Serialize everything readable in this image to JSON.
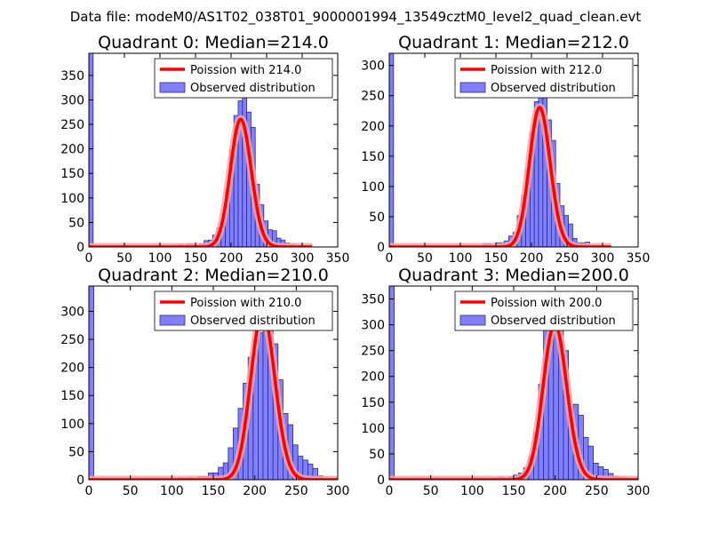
{
  "suptitle": "Data file: modeM0/AS1T02_038T01_9000001994_13549cztM0_level2_quad_clean.evt",
  "colors": {
    "bar_fill": "#8080ff",
    "bar_edge": "#2a2a8c",
    "fit_line": "#ff0000",
    "fit_shadow": "#f4a6a6",
    "axes": "#000000",
    "legend_border": "#000000"
  },
  "chart_data": [
    {
      "type": "bar",
      "title": "Quadrant 0: Median=214.0",
      "bin_width": 6,
      "xlim": [
        0,
        350
      ],
      "ylim": [
        0,
        395
      ],
      "xticks": [
        0,
        50,
        100,
        150,
        200,
        250,
        300,
        350
      ],
      "yticks": [
        0,
        50,
        100,
        150,
        200,
        250,
        300,
        350
      ],
      "legend": {
        "position": "upper-right",
        "line_label": "Poission with 214.0",
        "bar_label": "Observed distribution"
      },
      "poisson_mean": 214.0,
      "bins": [
        [
          0,
          395
        ],
        [
          126,
          5
        ],
        [
          138,
          6
        ],
        [
          144,
          5
        ],
        [
          156,
          7
        ],
        [
          162,
          13
        ],
        [
          168,
          14
        ],
        [
          174,
          24
        ],
        [
          180,
          39
        ],
        [
          186,
          52
        ],
        [
          192,
          117
        ],
        [
          198,
          198
        ],
        [
          204,
          268
        ],
        [
          210,
          298
        ],
        [
          216,
          312
        ],
        [
          222,
          275
        ],
        [
          228,
          244
        ],
        [
          234,
          128
        ],
        [
          240,
          86
        ],
        [
          246,
          53
        ],
        [
          252,
          35
        ],
        [
          258,
          33
        ],
        [
          264,
          18
        ],
        [
          270,
          14
        ],
        [
          276,
          8
        ],
        [
          282,
          7
        ]
      ]
    },
    {
      "type": "bar",
      "title": "Quadrant 1: Median=212.0",
      "bin_width": 6,
      "xlim": [
        0,
        350
      ],
      "ylim": [
        0,
        320
      ],
      "xticks": [
        0,
        50,
        100,
        150,
        200,
        250,
        300,
        350
      ],
      "yticks": [
        0,
        50,
        100,
        150,
        200,
        250,
        300
      ],
      "legend": {
        "position": "upper-right",
        "line_label": "Poission with 212.0",
        "bar_label": "Observed distribution"
      },
      "poisson_mean": 212.0,
      "bins": [
        [
          0,
          320
        ],
        [
          120,
          2
        ],
        [
          132,
          6
        ],
        [
          138,
          6
        ],
        [
          150,
          7
        ],
        [
          156,
          7
        ],
        [
          162,
          10
        ],
        [
          168,
          18
        ],
        [
          174,
          24
        ],
        [
          180,
          52
        ],
        [
          186,
          85
        ],
        [
          192,
          128
        ],
        [
          198,
          188
        ],
        [
          204,
          240
        ],
        [
          210,
          298
        ],
        [
          216,
          262
        ],
        [
          222,
          210
        ],
        [
          228,
          176
        ],
        [
          234,
          105
        ],
        [
          240,
          68
        ],
        [
          246,
          52
        ],
        [
          252,
          38
        ],
        [
          258,
          14
        ],
        [
          264,
          7
        ],
        [
          270,
          7
        ],
        [
          276,
          8
        ]
      ]
    },
    {
      "type": "bar",
      "title": "Quadrant 2: Median=210.0",
      "bin_width": 6,
      "xlim": [
        0,
        300
      ],
      "ylim": [
        0,
        345
      ],
      "xticks": [
        0,
        50,
        100,
        150,
        200,
        250,
        300
      ],
      "yticks": [
        0,
        50,
        100,
        150,
        200,
        250,
        300
      ],
      "legend": {
        "position": "upper-right",
        "line_label": "Poission with 210.0",
        "bar_label": "Observed distribution"
      },
      "poisson_mean": 210.0,
      "bins": [
        [
          0,
          345
        ],
        [
          102,
          2
        ],
        [
          120,
          3
        ],
        [
          132,
          6
        ],
        [
          138,
          6
        ],
        [
          144,
          12
        ],
        [
          150,
          12
        ],
        [
          156,
          22
        ],
        [
          162,
          30
        ],
        [
          168,
          57
        ],
        [
          174,
          92
        ],
        [
          180,
          127
        ],
        [
          186,
          172
        ],
        [
          192,
          218
        ],
        [
          198,
          248
        ],
        [
          204,
          262
        ],
        [
          210,
          298
        ],
        [
          216,
          270
        ],
        [
          222,
          242
        ],
        [
          228,
          178
        ],
        [
          234,
          118
        ],
        [
          240,
          98
        ],
        [
          246,
          62
        ],
        [
          252,
          42
        ],
        [
          258,
          35
        ],
        [
          264,
          28
        ],
        [
          270,
          20
        ],
        [
          276,
          7
        ]
      ]
    },
    {
      "type": "bar",
      "title": "Quadrant 3: Median=200.0",
      "bin_width": 6,
      "xlim": [
        0,
        300
      ],
      "ylim": [
        0,
        375
      ],
      "xticks": [
        0,
        50,
        100,
        150,
        200,
        250,
        300
      ],
      "yticks": [
        0,
        50,
        100,
        150,
        200,
        250,
        300,
        350
      ],
      "legend": {
        "position": "upper-right",
        "line_label": "Poission with 200.0",
        "bar_label": "Observed distribution"
      },
      "poisson_mean": 200.0,
      "bins": [
        [
          0,
          375
        ],
        [
          114,
          2
        ],
        [
          126,
          3
        ],
        [
          132,
          5
        ],
        [
          144,
          6
        ],
        [
          150,
          9
        ],
        [
          156,
          13
        ],
        [
          162,
          23
        ],
        [
          168,
          45
        ],
        [
          174,
          92
        ],
        [
          180,
          185
        ],
        [
          186,
          305
        ],
        [
          192,
          330
        ],
        [
          198,
          318
        ],
        [
          204,
          342
        ],
        [
          210,
          250
        ],
        [
          216,
          142
        ],
        [
          222,
          146
        ],
        [
          228,
          125
        ],
        [
          234,
          82
        ],
        [
          240,
          65
        ],
        [
          246,
          32
        ],
        [
          252,
          25
        ],
        [
          258,
          20
        ],
        [
          264,
          12
        ],
        [
          270,
          7
        ],
        [
          276,
          5
        ],
        [
          282,
          4
        ]
      ]
    }
  ]
}
